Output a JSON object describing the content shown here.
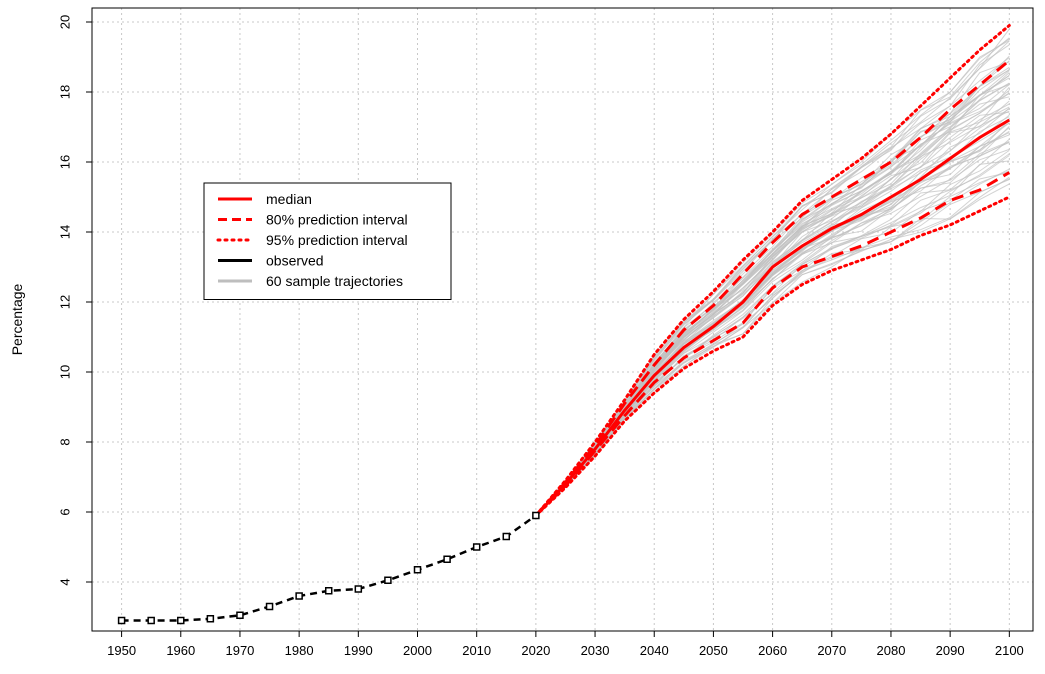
{
  "chart_data": {
    "type": "line",
    "title": "",
    "xlabel": "",
    "ylabel": "Percentage",
    "xlim": [
      1945,
      2104
    ],
    "ylim": [
      2.6,
      20.4
    ],
    "x_ticks": [
      1950,
      1960,
      1970,
      1980,
      1990,
      2000,
      2010,
      2020,
      2030,
      2040,
      2050,
      2060,
      2070,
      2080,
      2090,
      2100
    ],
    "y_ticks": [
      4,
      6,
      8,
      10,
      12,
      14,
      16,
      18,
      20
    ],
    "grid": true,
    "legend_position": "left",
    "legend": [
      {
        "label": "median",
        "style": "solid",
        "color": "#ff0000"
      },
      {
        "label": "80% prediction interval",
        "style": "dashed",
        "color": "#ff0000"
      },
      {
        "label": "95% prediction interval",
        "style": "dotted",
        "color": "#ff0000"
      },
      {
        "label": "observed",
        "style": "solid",
        "color": "#000000"
      },
      {
        "label": "60 sample trajectories",
        "style": "solid",
        "color": "#bebebe"
      }
    ],
    "observed": {
      "x": [
        1950,
        1955,
        1960,
        1965,
        1970,
        1975,
        1980,
        1985,
        1990,
        1995,
        2000,
        2005,
        2010,
        2015,
        2020
      ],
      "y": [
        2.9,
        2.9,
        2.9,
        2.95,
        3.05,
        3.3,
        3.6,
        3.75,
        3.8,
        4.05,
        4.35,
        4.65,
        5.0,
        5.3,
        5.9
      ]
    },
    "forecast_x": [
      2020,
      2025,
      2030,
      2035,
      2040,
      2045,
      2050,
      2055,
      2060,
      2065,
      2070,
      2075,
      2080,
      2085,
      2090,
      2095,
      2100
    ],
    "median": [
      5.9,
      6.8,
      7.8,
      8.9,
      9.9,
      10.7,
      11.3,
      12.0,
      13.0,
      13.6,
      14.1,
      14.5,
      15.0,
      15.5,
      16.1,
      16.7,
      17.2
    ],
    "pi80_upper": [
      5.9,
      6.85,
      7.9,
      9.1,
      10.2,
      11.2,
      11.9,
      12.8,
      13.7,
      14.5,
      15.0,
      15.5,
      16.0,
      16.7,
      17.5,
      18.2,
      18.9
    ],
    "pi80_lower": [
      5.9,
      6.75,
      7.75,
      8.75,
      9.7,
      10.4,
      10.9,
      11.4,
      12.4,
      13.0,
      13.3,
      13.6,
      14.0,
      14.4,
      14.9,
      15.2,
      15.7
    ],
    "pi95_upper": [
      5.9,
      6.9,
      8.0,
      9.2,
      10.5,
      11.5,
      12.3,
      13.2,
      14.0,
      14.9,
      15.5,
      16.1,
      16.8,
      17.6,
      18.4,
      19.2,
      19.9
    ],
    "pi95_lower": [
      5.9,
      6.7,
      7.6,
      8.6,
      9.4,
      10.1,
      10.6,
      11.0,
      11.9,
      12.5,
      12.9,
      13.2,
      13.5,
      13.9,
      14.2,
      14.6,
      15.0
    ],
    "sample_trajectory_count": 60
  }
}
